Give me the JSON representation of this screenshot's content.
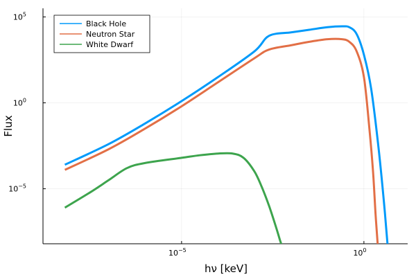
{
  "chart_data": {
    "type": "line",
    "title": "",
    "xlabel": "hν [keV]",
    "ylabel": "Flux",
    "xscale": "log10",
    "yscale": "log10",
    "xlim_log10": [
      -8.8,
      1.2
    ],
    "ylim_log10": [
      -8.2,
      5.5
    ],
    "grid": true,
    "legend_position": "top-left",
    "x_ticks": [
      {
        "log10": -5,
        "label": "10",
        "exp": "−5"
      },
      {
        "log10": 0,
        "label": "10",
        "exp": "0"
      }
    ],
    "y_ticks": [
      {
        "log10": -5,
        "label": "10",
        "exp": "−5"
      },
      {
        "log10": 0,
        "label": "10",
        "exp": "0"
      },
      {
        "log10": 5,
        "label": "10",
        "exp": "5"
      }
    ],
    "series": [
      {
        "name": "Black Hole",
        "color": "#009AFA",
        "x_log10": [
          -8.2,
          -7.0,
          -6.0,
          -5.0,
          -4.0,
          -3.0,
          -2.6,
          -2.0,
          -1.5,
          -1.0,
          -0.6,
          -0.4,
          -0.2,
          0.0,
          0.2,
          0.4,
          0.55,
          0.65
        ],
        "y_log10": [
          -3.6,
          -2.4,
          -1.2,
          0.1,
          1.5,
          3.0,
          3.9,
          4.1,
          4.25,
          4.4,
          4.45,
          4.4,
          4.0,
          2.8,
          0.8,
          -2.6,
          -5.8,
          -8.3
        ]
      },
      {
        "name": "Neutron Star",
        "color": "#E26F46",
        "x_log10": [
          -8.2,
          -7.0,
          -6.0,
          -5.0,
          -4.0,
          -3.0,
          -2.6,
          -2.0,
          -1.5,
          -1.0,
          -0.6,
          -0.4,
          -0.2,
          0.0,
          0.15,
          0.25,
          0.32,
          0.38
        ],
        "y_log10": [
          -3.9,
          -2.7,
          -1.5,
          -0.2,
          1.2,
          2.6,
          3.1,
          3.35,
          3.55,
          3.7,
          3.7,
          3.55,
          3.0,
          1.5,
          -1.5,
          -4.0,
          -6.5,
          -8.3
        ]
      },
      {
        "name": "White Dwarf",
        "color": "#3DA44D",
        "x_log10": [
          -8.2,
          -7.5,
          -7.0,
          -6.5,
          -6.0,
          -5.0,
          -4.5,
          -4.0,
          -3.6,
          -3.3,
          -3.0,
          -2.8,
          -2.6,
          -2.4,
          -2.3,
          -2.25,
          -2.2
        ],
        "y_log10": [
          -6.1,
          -5.2,
          -4.5,
          -3.8,
          -3.5,
          -3.2,
          -3.05,
          -2.95,
          -2.95,
          -3.2,
          -4.0,
          -4.9,
          -6.0,
          -7.3,
          -8.0,
          -8.3,
          -8.5
        ]
      }
    ]
  }
}
